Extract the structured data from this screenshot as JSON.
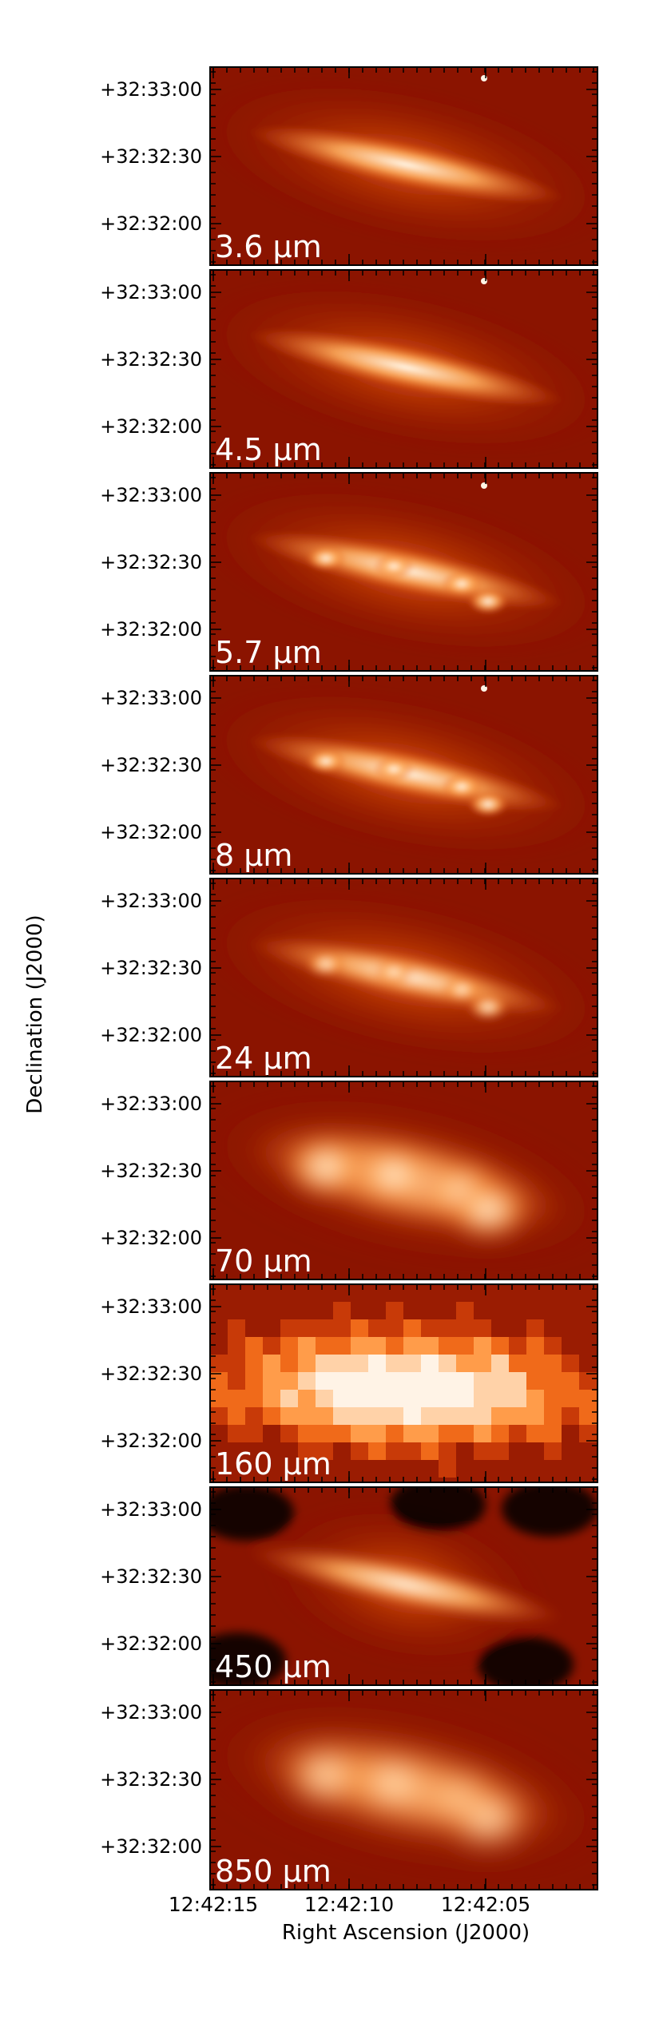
{
  "figure": {
    "ylabel": "Declination (J2000)",
    "xlabel": "Right Ascension (J2000)",
    "y_ticks": [
      "+32:33:00",
      "+32:32:30",
      "+32:32:00"
    ],
    "x_ticks": [
      "12:42:15",
      "12:42:10",
      "12:42:05"
    ],
    "colors": {
      "background": "#8b1400",
      "mid": "#e85b10",
      "bright": "#fff5e6"
    }
  },
  "panels": [
    {
      "label": "3.6 μm",
      "style": "stellar",
      "blur": 2
    },
    {
      "label": "4.5 μm",
      "style": "stellar",
      "blur": 2
    },
    {
      "label": "5.7 μm",
      "style": "clumpy",
      "blur": 3
    },
    {
      "label": "8 μm",
      "style": "clumpy",
      "blur": 3
    },
    {
      "label": "24 μm",
      "style": "knots",
      "blur": 5
    },
    {
      "label": "70 μm",
      "style": "smooth",
      "blur": 12
    },
    {
      "label": "160 μm",
      "style": "pixelated",
      "blur": 0
    },
    {
      "label": "450 μm",
      "style": "noisy",
      "blur": 6
    },
    {
      "label": "850 μm",
      "style": "smooth",
      "blur": 16
    }
  ]
}
